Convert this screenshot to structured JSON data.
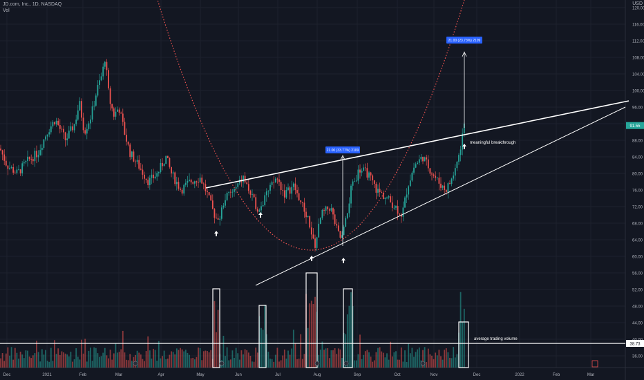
{
  "header": {
    "symbol": "JD.com, Inc., 1D, NASDAQ",
    "vol_label": "Vol",
    "currency": "USD"
  },
  "chart_data": {
    "type": "candlestick",
    "price_axis": {
      "ticks": [
        36,
        40,
        44,
        48,
        52,
        56,
        60,
        64,
        68,
        72,
        76,
        80,
        84,
        88,
        92,
        96,
        100,
        104,
        108,
        112,
        116,
        120
      ],
      "range": [
        33.5,
        121
      ]
    },
    "x_axis": {
      "labels": [
        "Dec",
        "2021",
        "Feb",
        "Mar",
        "Apr",
        "May",
        "Jun",
        "Jul",
        "Aug",
        "Sep",
        "Oct",
        "Nov",
        "Dec",
        "2022",
        "Feb",
        "Mar"
      ]
    },
    "last_price": "91.55",
    "avg_volume_value": "38.73",
    "volume_panel_price_range": [
      33.5,
      60
    ],
    "annotations": {
      "target_label": "21.00 (23.73%) 2109",
      "measure_label": "21.00 (33.77%) 2109",
      "breakthrough_label": "meaningful breakthrough",
      "avg_volume_label": "average trading volume"
    },
    "price_path_keypoints": [
      [
        0,
        86
      ],
      [
        10,
        82
      ],
      [
        25,
        80
      ],
      [
        40,
        83
      ],
      [
        55,
        85
      ],
      [
        68,
        90
      ],
      [
        80,
        93
      ],
      [
        95,
        88
      ],
      [
        108,
        92
      ],
      [
        115,
        97
      ],
      [
        122,
        90
      ],
      [
        132,
        94
      ],
      [
        140,
        100
      ],
      [
        148,
        104
      ],
      [
        152,
        108
      ],
      [
        158,
        98
      ],
      [
        165,
        94
      ],
      [
        172,
        96
      ],
      [
        180,
        90
      ],
      [
        188,
        85
      ],
      [
        200,
        82
      ],
      [
        215,
        78
      ],
      [
        228,
        80
      ],
      [
        240,
        84
      ],
      [
        248,
        80
      ],
      [
        262,
        76
      ],
      [
        275,
        78
      ],
      [
        290,
        79
      ],
      [
        300,
        75
      ],
      [
        308,
        71
      ],
      [
        316,
        68
      ],
      [
        325,
        74
      ],
      [
        340,
        76
      ],
      [
        352,
        79
      ],
      [
        365,
        74
      ],
      [
        375,
        71
      ],
      [
        390,
        76
      ],
      [
        400,
        79
      ],
      [
        412,
        75
      ],
      [
        425,
        77
      ],
      [
        438,
        72
      ],
      [
        448,
        68
      ],
      [
        455,
        62
      ],
      [
        465,
        70
      ],
      [
        478,
        72
      ],
      [
        488,
        66
      ],
      [
        494,
        64
      ],
      [
        500,
        68
      ],
      [
        508,
        76
      ],
      [
        520,
        81
      ],
      [
        532,
        80
      ],
      [
        545,
        76
      ],
      [
        560,
        74
      ],
      [
        572,
        72
      ],
      [
        582,
        70
      ],
      [
        590,
        77
      ],
      [
        600,
        82
      ],
      [
        612,
        84
      ],
      [
        622,
        81
      ],
      [
        634,
        78
      ],
      [
        645,
        76
      ],
      [
        655,
        79
      ],
      [
        665,
        85
      ],
      [
        672,
        92
      ]
    ],
    "volume_highlights": [
      {
        "from": "May",
        "to": "May"
      },
      {
        "from": "Jun",
        "to": "Jun"
      },
      {
        "from": "Aug",
        "to": "Aug"
      },
      {
        "from": "Aug",
        "to": "Aug"
      },
      {
        "from": "Nov",
        "to": "Nov"
      }
    ],
    "colors": {
      "up": "#26a69a",
      "down": "#ef5350",
      "background": "#131722",
      "grid": "#1e222d",
      "axis_text": "#b2b5be",
      "label_bg": "#2962ff",
      "curve": "#ef5350"
    }
  }
}
